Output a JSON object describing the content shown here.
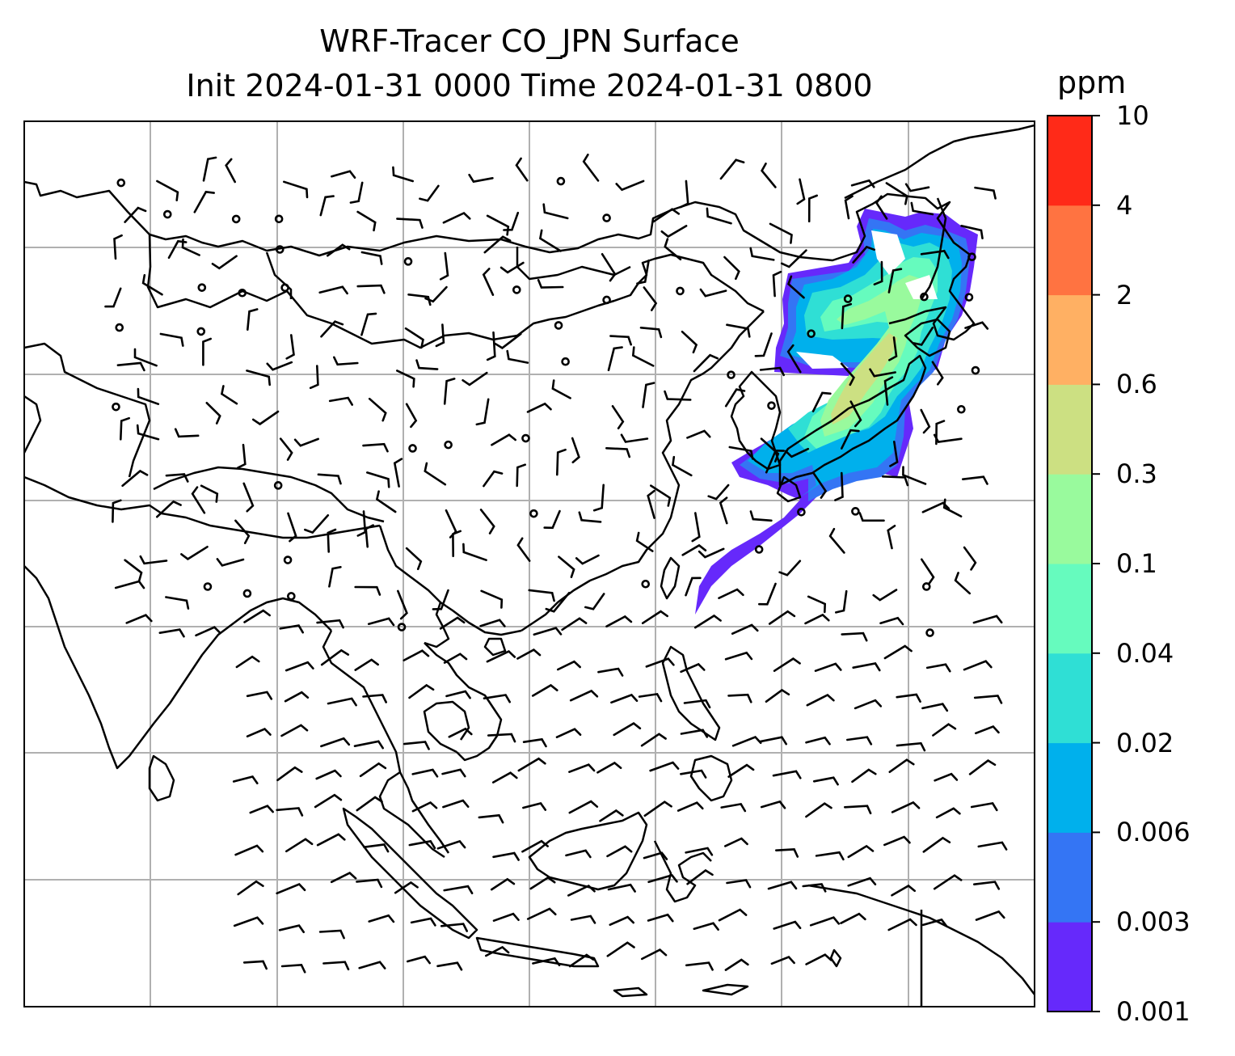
{
  "title_line1": "WRF-Tracer CO_JPN Surface",
  "title_line2": "Init 2024-01-31 0000 Time 2024-01-31 0800",
  "colorbar": {
    "unit": "ppm",
    "levels": [
      "0.001",
      "0.003",
      "0.006",
      "0.02",
      "0.04",
      "0.1",
      "0.3",
      "0.6",
      "2",
      "4",
      "10"
    ],
    "colors": [
      "#6629fb",
      "#3475f4",
      "#00b0ec",
      "#2fdfd5",
      "#66fbbe",
      "#99fa9d",
      "#cce082",
      "#ffb063",
      "#ff7341",
      "#ff2a18"
    ]
  },
  "map": {
    "land_outline_color": "#000000",
    "gridline_color": "#b0b0b0"
  }
}
